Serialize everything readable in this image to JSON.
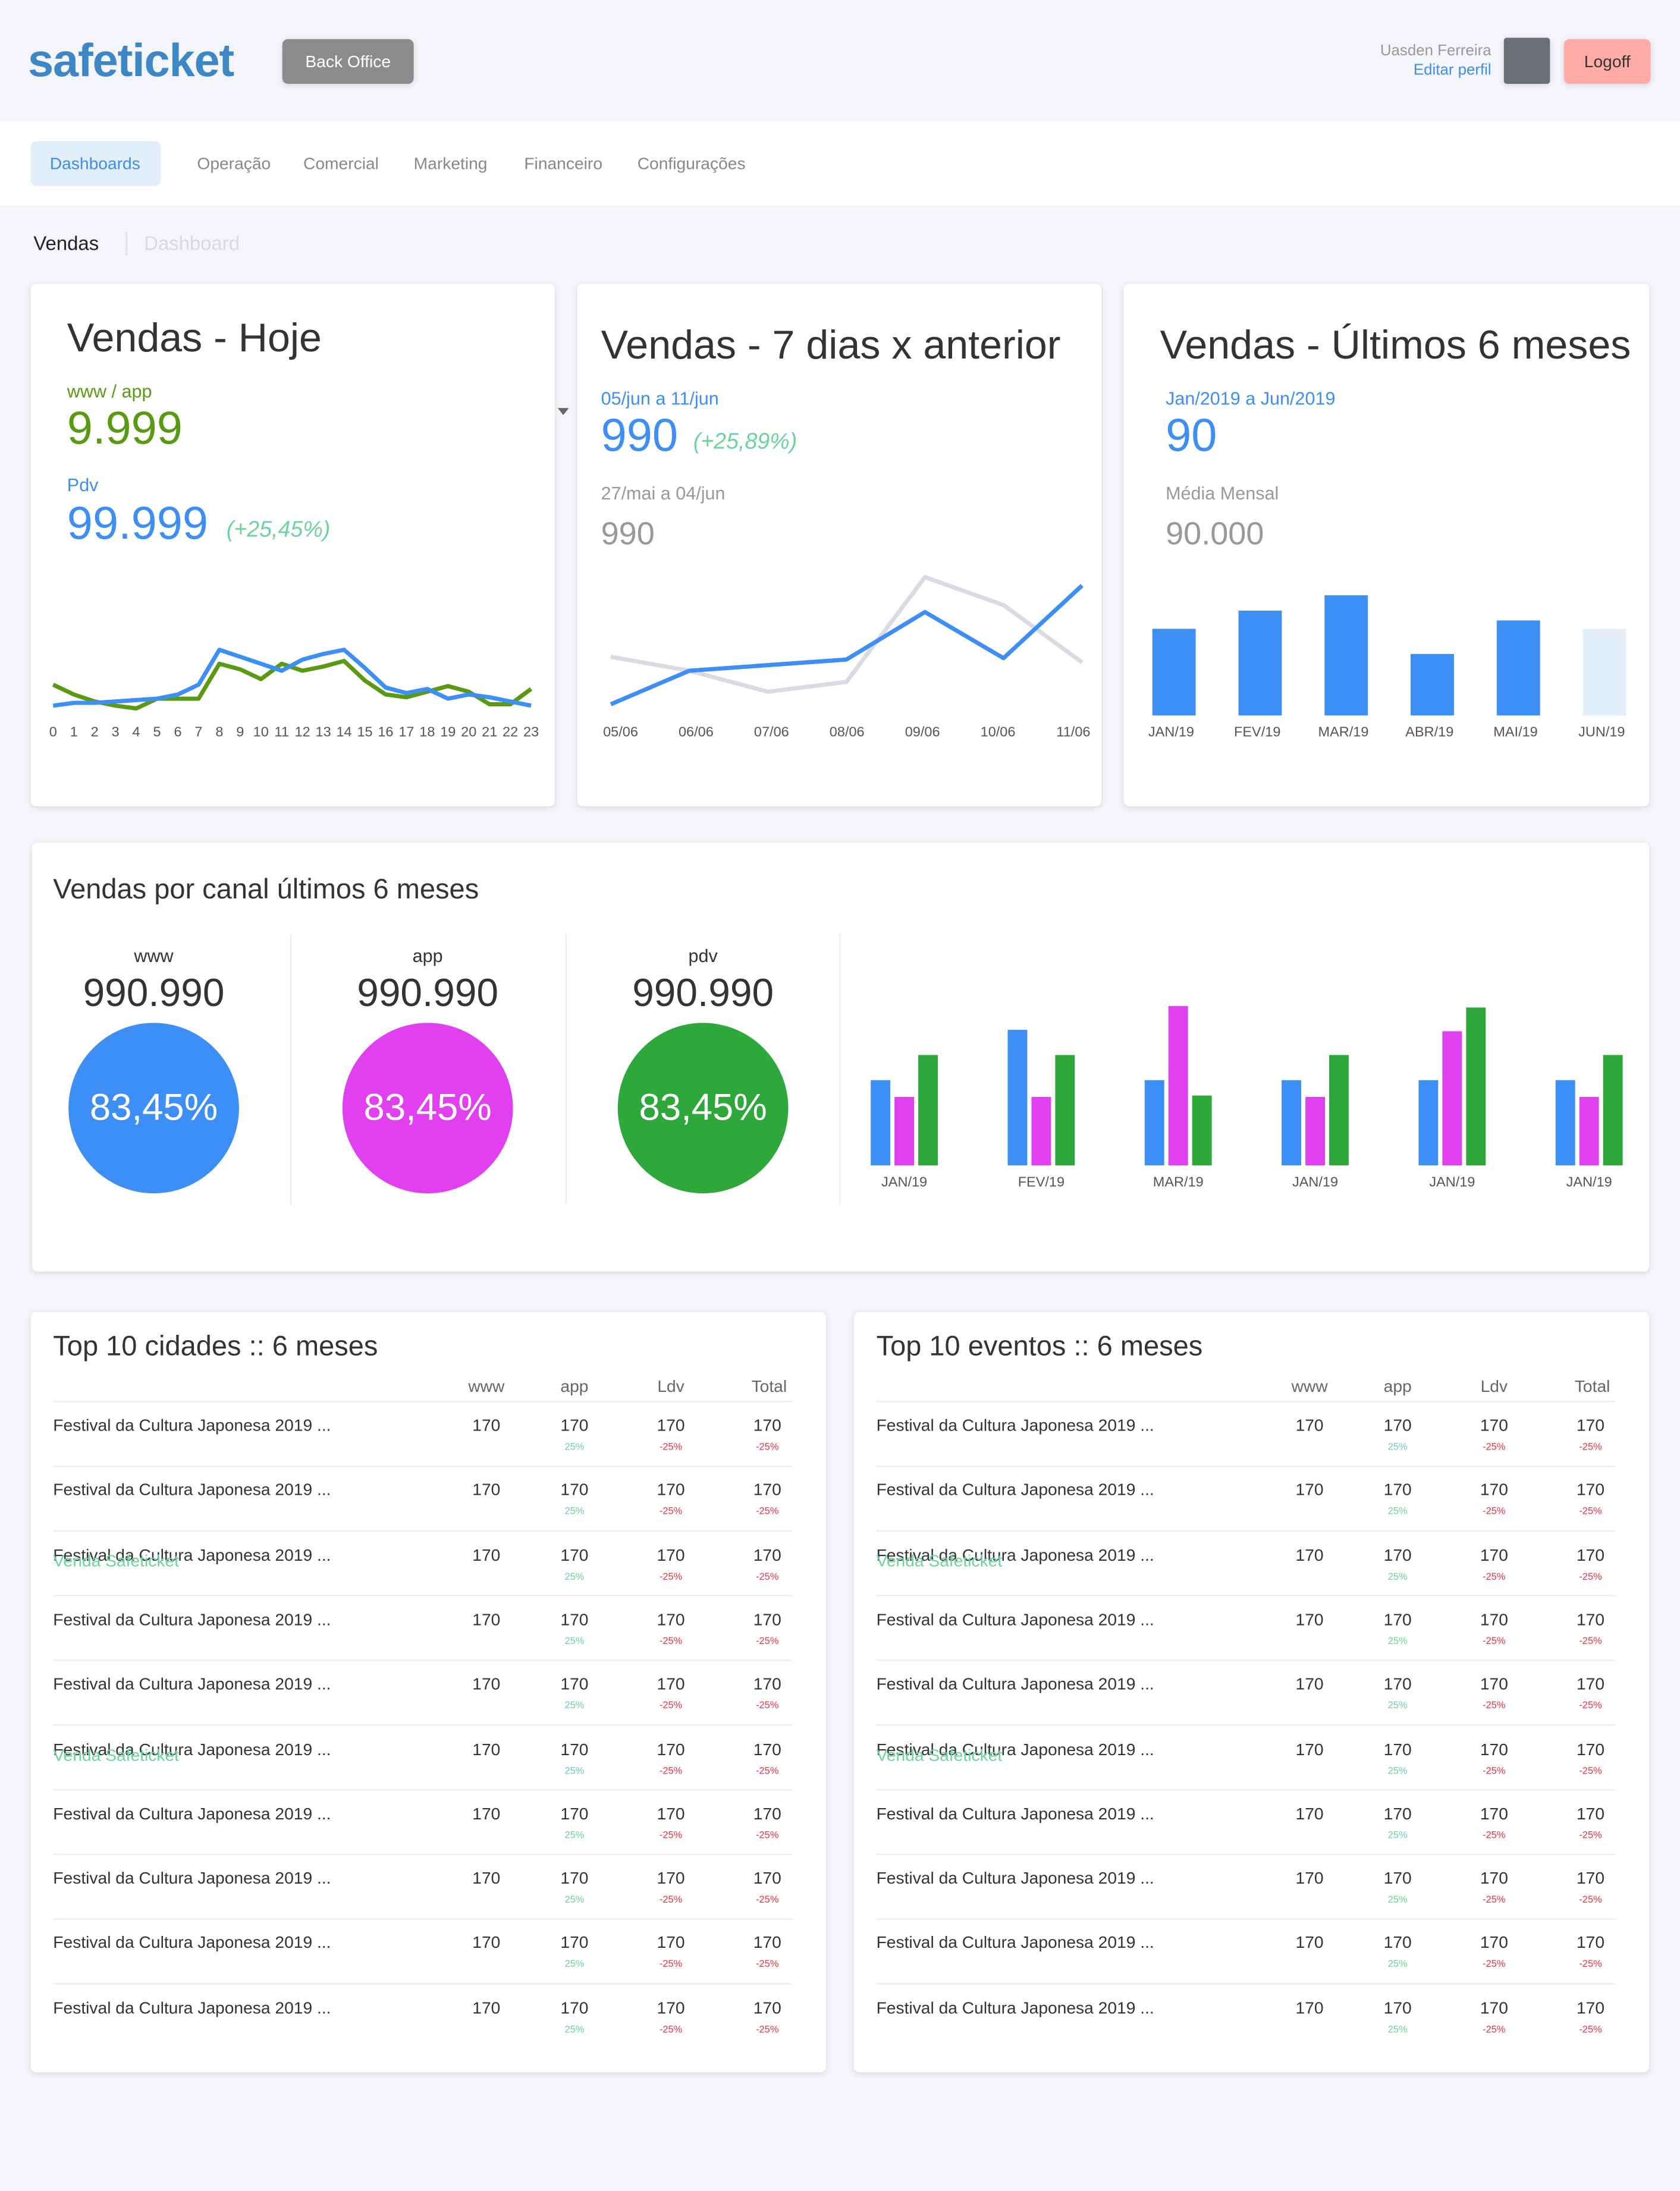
{
  "header": {
    "logo": "safeticket",
    "back_office": "Back Office",
    "user_name": "Uasden Ferreira",
    "edit_profile": "Editar perfil",
    "logoff": "Logoff"
  },
  "nav": [
    "Dashboards",
    "Operação",
    "Comercial",
    "Marketing",
    "Financeiro",
    "Configurações"
  ],
  "breadcrumb": [
    "Vendas",
    "Dashboard"
  ],
  "cards": [
    {
      "title": "Vendas - Hoje",
      "label_a": "www / app",
      "value_a": "9.999",
      "label_b": "Pdv",
      "value_b": "99.999",
      "delta": "(+25,45%)"
    },
    {
      "title": "Vendas - 7 dias x anterior",
      "label_a": "05/jun a 11/jun",
      "value_a": "990",
      "delta": "(+25,89%)",
      "label_b": "27/mai a 04/jun",
      "value_b": "990"
    },
    {
      "title": "Vendas - Últimos 6 meses",
      "label_a": "Jan/2019 a Jun/2019",
      "value_a": "90",
      "label_b": "Média Mensal",
      "value_b": "90.000"
    }
  ],
  "channels": {
    "title": "Vendas por canal últimos 6 meses",
    "items": [
      {
        "label": "www",
        "total": "990.990",
        "pct": "83,45%",
        "color": "#3d8ff5"
      },
      {
        "label": "app",
        "total": "990.990",
        "pct": "83,45%",
        "color": "#e040f0"
      },
      {
        "label": "pdv",
        "total": "990.990",
        "pct": "83,45%",
        "color": "#2ea83a"
      }
    ]
  },
  "chart_data": [
    {
      "type": "line",
      "categories": [
        "0",
        "1",
        "2",
        "3",
        "4",
        "5",
        "6",
        "7",
        "8",
        "9",
        "10",
        "11",
        "12",
        "13",
        "14",
        "15",
        "16",
        "17",
        "18",
        "19",
        "20",
        "21",
        "22",
        "23"
      ],
      "ylim": [
        0,
        60
      ],
      "series": [
        {
          "color": "#5a9a12",
          "values": [
            30,
            23,
            18,
            15,
            13,
            20,
            20,
            20,
            45,
            41,
            34,
            45,
            40,
            43,
            47,
            33,
            23,
            21,
            25,
            29,
            25,
            16,
            16,
            27
          ]
        },
        {
          "color": "#3d8ff5",
          "values": [
            15,
            17,
            17,
            18,
            19,
            20,
            23,
            30,
            55,
            50,
            45,
            40,
            48,
            52,
            55,
            42,
            28,
            24,
            27,
            20,
            23,
            21,
            18,
            15
          ]
        }
      ]
    },
    {
      "type": "line",
      "categories": [
        "05/06",
        "06/06",
        "07/06",
        "08/06",
        "09/06",
        "10/06",
        "11/06"
      ],
      "ylim": [
        0,
        120
      ],
      "series": [
        {
          "color": "#d9dae2",
          "values": [
            50,
            40,
            25,
            32,
            107,
            87,
            46
          ]
        },
        {
          "color": "#3d8ff5",
          "values": [
            16,
            40,
            44,
            48,
            82,
            49,
            101
          ]
        }
      ]
    },
    {
      "type": "bar",
      "categories": [
        "JAN/19",
        "FEV/19",
        "MAR/19",
        "ABR/19",
        "MAI/19",
        "JUN/19"
      ],
      "ylim": [
        0,
        100
      ],
      "values": [
        62,
        75,
        86,
        44,
        68,
        62
      ],
      "colors": [
        "#3d8ff5",
        "#3d8ff5",
        "#3d8ff5",
        "#3d8ff5",
        "#3d8ff5",
        "#e3eefb"
      ]
    },
    {
      "type": "grouped-bar",
      "categories": [
        "JAN/19",
        "FEV/19",
        "MAR/19",
        "JAN/19",
        "JAN/19",
        "JAN/19"
      ],
      "ylim": [
        0,
        120
      ],
      "series": [
        {
          "color": "#3d8ff5",
          "values": [
            61,
            97,
            61,
            61,
            61,
            61
          ]
        },
        {
          "color": "#e040f0",
          "values": [
            49,
            49,
            114,
            49,
            96,
            49
          ]
        },
        {
          "color": "#2ea83a",
          "values": [
            79,
            79,
            50,
            79,
            113,
            79
          ]
        }
      ]
    }
  ],
  "tables": [
    {
      "title": "Top 10 cidades :: 6 meses",
      "columns": [
        "www",
        "app",
        "Ldv",
        "Total"
      ],
      "rows": [
        [
          "Festival da Cultura Japonesa 2019 ...",
          170,
          170,
          "25%",
          170,
          "-25%",
          170,
          "-25%"
        ],
        [
          "Festival da Cultura Japonesa 2019 ...",
          170,
          170,
          "25%",
          170,
          "-25%",
          170,
          "-25%"
        ],
        [
          "Festival da Cultura Japonesa 2019 ...",
          170,
          170,
          "25%",
          170,
          "-25%",
          170,
          "-25%",
          "Venda Safeticket"
        ],
        [
          "Festival da Cultura Japonesa 2019 ...",
          170,
          170,
          "25%",
          170,
          "-25%",
          170,
          "-25%"
        ],
        [
          "Festival da Cultura Japonesa 2019 ...",
          170,
          170,
          "25%",
          170,
          "-25%",
          170,
          "-25%"
        ],
        [
          "Festival da Cultura Japonesa 2019 ...",
          170,
          170,
          "25%",
          170,
          "-25%",
          170,
          "-25%",
          "Venda Safeticket"
        ],
        [
          "Festival da Cultura Japonesa 2019 ...",
          170,
          170,
          "25%",
          170,
          "-25%",
          170,
          "-25%"
        ],
        [
          "Festival da Cultura Japonesa 2019 ...",
          170,
          170,
          "25%",
          170,
          "-25%",
          170,
          "-25%"
        ],
        [
          "Festival da Cultura Japonesa 2019 ...",
          170,
          170,
          "25%",
          170,
          "-25%",
          170,
          "-25%"
        ],
        [
          "Festival da Cultura Japonesa 2019 ...",
          170,
          170,
          "25%",
          170,
          "-25%",
          170,
          "-25%"
        ]
      ]
    },
    {
      "title": "Top 10 eventos :: 6 meses",
      "columns": [
        "www",
        "app",
        "Ldv",
        "Total"
      ],
      "rows": [
        [
          "Festival da Cultura Japonesa 2019 ...",
          170,
          170,
          "25%",
          170,
          "-25%",
          170,
          "-25%"
        ],
        [
          "Festival da Cultura Japonesa 2019 ...",
          170,
          170,
          "25%",
          170,
          "-25%",
          170,
          "-25%"
        ],
        [
          "Festival da Cultura Japonesa 2019 ...",
          170,
          170,
          "25%",
          170,
          "-25%",
          170,
          "-25%",
          "Venda Safeticket"
        ],
        [
          "Festival da Cultura Japonesa 2019 ...",
          170,
          170,
          "25%",
          170,
          "-25%",
          170,
          "-25%"
        ],
        [
          "Festival da Cultura Japonesa 2019 ...",
          170,
          170,
          "25%",
          170,
          "-25%",
          170,
          "-25%"
        ],
        [
          "Festival da Cultura Japonesa 2019 ...",
          170,
          170,
          "25%",
          170,
          "-25%",
          170,
          "-25%",
          "Venda Safeticket"
        ],
        [
          "Festival da Cultura Japonesa 2019 ...",
          170,
          170,
          "25%",
          170,
          "-25%",
          170,
          "-25%"
        ],
        [
          "Festival da Cultura Japonesa 2019 ...",
          170,
          170,
          "25%",
          170,
          "-25%",
          170,
          "-25%"
        ],
        [
          "Festival da Cultura Japonesa 2019 ...",
          170,
          170,
          "25%",
          170,
          "-25%",
          170,
          "-25%"
        ],
        [
          "Festival da Cultura Japonesa 2019 ...",
          170,
          170,
          "25%",
          170,
          "-25%",
          170,
          "-25%"
        ]
      ]
    }
  ]
}
